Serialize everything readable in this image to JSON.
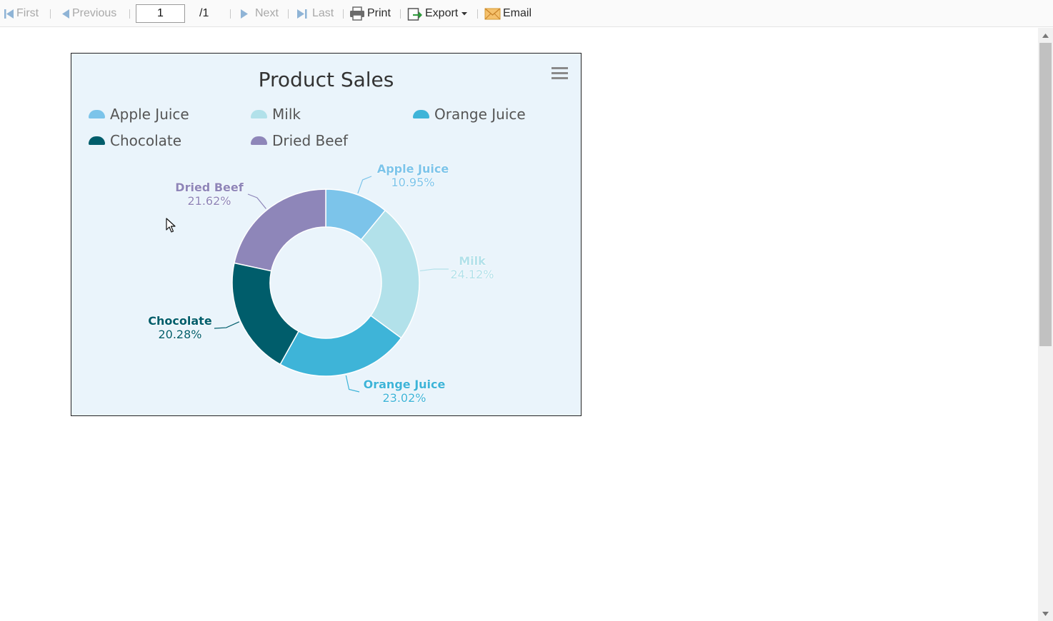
{
  "toolbar": {
    "first_label": "First",
    "previous_label": "Previous",
    "page_value": "1",
    "page_total": "/1",
    "next_label": "Next",
    "last_label": "Last",
    "print_label": "Print",
    "export_label": "Export",
    "email_label": "Email",
    "icons": [
      "first-page-icon",
      "previous-page-icon",
      "next-page-icon",
      "last-page-icon",
      "printer-icon",
      "export-icon",
      "dropdown-caret-icon",
      "envelope-icon"
    ]
  },
  "report": {
    "menu_icon": "hamburger-menu-icon"
  },
  "chart_data": {
    "type": "pie",
    "variant": "donut",
    "title": "Product Sales",
    "legend_position": "top",
    "slices": [
      {
        "name": "Apple Juice",
        "percent": 10.95,
        "label": "10.95%",
        "color": "#7cc4ea"
      },
      {
        "name": "Milk",
        "percent": 24.12,
        "label": "24.12%",
        "color": "#b2e1ea"
      },
      {
        "name": "Orange Juice",
        "percent": 23.02,
        "label": "23.02%",
        "color": "#3eb4d8"
      },
      {
        "name": "Chocolate",
        "percent": 20.28,
        "label": "20.28%",
        "color": "#005d6b"
      },
      {
        "name": "Dried Beef",
        "percent": 21.62,
        "label": "21.62%",
        "color": "#8e86b9"
      }
    ]
  }
}
